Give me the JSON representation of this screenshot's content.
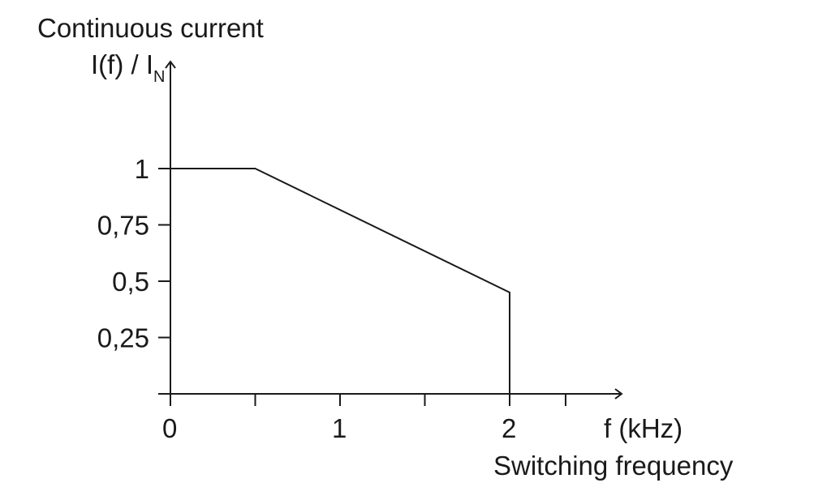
{
  "chart_data": {
    "type": "line",
    "ylabel_line1": "Continuous current",
    "ylabel_main": "I(f) / I",
    "ylabel_sub": "N",
    "xlabel_unit": "f (kHz)",
    "xlabel": "Switching frequency",
    "xlim": [
      0,
      2.6
    ],
    "ylim": [
      0,
      1.4
    ],
    "x_ticks": [
      0,
      0.5,
      1,
      1.5,
      2,
      2.33
    ],
    "x_tick_labels": [
      {
        "value": 0,
        "label": "0"
      },
      {
        "value": 1,
        "label": "1"
      },
      {
        "value": 2,
        "label": "2"
      }
    ],
    "y_ticks": [
      {
        "value": 1,
        "label": "1"
      },
      {
        "value": 0.75,
        "label": "0,75"
      },
      {
        "value": 0.5,
        "label": "0,5"
      },
      {
        "value": 0.25,
        "label": "0,25"
      }
    ],
    "grid": false,
    "series": [
      {
        "x": [
          0,
          0.5,
          2,
          2
        ],
        "y": [
          1,
          1,
          0.45,
          0
        ],
        "color": "#1a1a1a"
      }
    ]
  }
}
